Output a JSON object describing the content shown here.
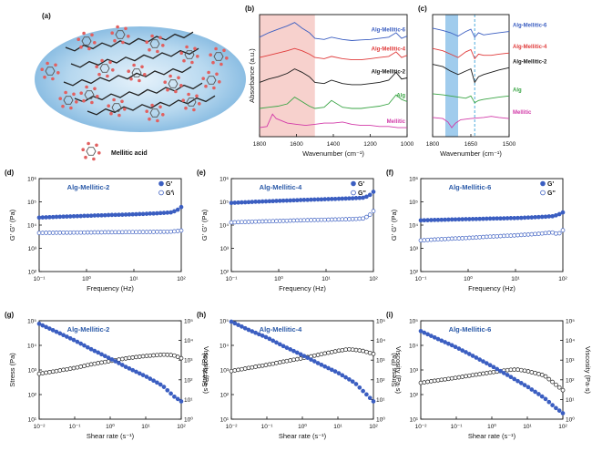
{
  "colors": {
    "blue": "#3b5ec1",
    "black": "#1a1a1a",
    "red": "#e03b3b",
    "green": "#3aa545",
    "magenta": "#d23aa8",
    "title": "#2b5aa8",
    "pink": "#f6c9c4",
    "lightblue": "#8fc3ea"
  },
  "panel_a": {
    "label": "(a)",
    "legend": "Mellitic acid"
  },
  "chart_data": [
    {
      "id": "b",
      "type": "line",
      "label": "(b)",
      "xlabel": "Wavenumber (cm⁻¹)",
      "ylabel": "Absorbance (a.u.)",
      "xlim": [
        1800,
        1000
      ],
      "xticks": [
        "1800",
        "1600",
        "1400",
        "1200",
        "1000"
      ],
      "xtick_values": [
        1800,
        1600,
        1400,
        1200,
        1000
      ],
      "highlight_range": [
        1800,
        1500
      ],
      "series": [
        {
          "name": "Alg-Mellitic-6",
          "color": "#3b5ec1",
          "x": [
            1800,
            1750,
            1700,
            1650,
            1610,
            1570,
            1530,
            1500,
            1450,
            1410,
            1350,
            1300,
            1250,
            1200,
            1150,
            1100,
            1060,
            1030,
            1000
          ],
          "y": [
            4.1,
            4.3,
            4.45,
            4.6,
            4.75,
            4.5,
            4.3,
            4.05,
            4.0,
            4.1,
            4.0,
            3.95,
            3.98,
            4.0,
            4.05,
            4.1,
            4.3,
            4.05,
            4.15
          ]
        },
        {
          "name": "Alg-Mellitic-4",
          "color": "#e03b3b",
          "x": [
            1800,
            1750,
            1700,
            1650,
            1610,
            1570,
            1530,
            1500,
            1450,
            1410,
            1350,
            1300,
            1250,
            1200,
            1150,
            1100,
            1060,
            1030,
            1000
          ],
          "y": [
            3.2,
            3.3,
            3.4,
            3.5,
            3.6,
            3.5,
            3.35,
            3.2,
            3.15,
            3.25,
            3.15,
            3.1,
            3.1,
            3.15,
            3.2,
            3.25,
            3.45,
            3.2,
            3.3
          ]
        },
        {
          "name": "Alg-Mellitic-2",
          "color": "#1a1a1a",
          "x": [
            1800,
            1750,
            1700,
            1650,
            1610,
            1570,
            1530,
            1500,
            1450,
            1410,
            1350,
            1300,
            1250,
            1200,
            1150,
            1100,
            1060,
            1030,
            1000
          ],
          "y": [
            2.1,
            2.25,
            2.35,
            2.5,
            2.7,
            2.55,
            2.35,
            2.1,
            2.05,
            2.2,
            2.05,
            2.0,
            2.0,
            2.05,
            2.1,
            2.2,
            2.55,
            2.25,
            2.3
          ]
        },
        {
          "name": "Alg",
          "color": "#3aa545",
          "x": [
            1800,
            1750,
            1700,
            1650,
            1610,
            1570,
            1530,
            1500,
            1450,
            1410,
            1350,
            1300,
            1250,
            1200,
            1150,
            1100,
            1060,
            1030,
            1000
          ],
          "y": [
            0.95,
            1.0,
            1.05,
            1.15,
            1.45,
            1.25,
            1.05,
            0.95,
            1.0,
            1.3,
            1.0,
            0.95,
            0.95,
            1.0,
            1.05,
            1.15,
            1.55,
            1.35,
            1.25
          ]
        },
        {
          "name": "Mellitic",
          "color": "#d23aa8",
          "x": [
            1800,
            1760,
            1730,
            1710,
            1680,
            1650,
            1600,
            1550,
            1500,
            1450,
            1400,
            1350,
            1300,
            1250,
            1200,
            1150,
            1100,
            1050,
            1000
          ],
          "y": [
            0.1,
            0.15,
            0.7,
            0.5,
            0.4,
            0.3,
            0.25,
            0.2,
            0.25,
            0.3,
            0.3,
            0.35,
            0.25,
            0.2,
            0.2,
            0.15,
            0.15,
            0.1,
            0.1
          ]
        }
      ]
    },
    {
      "id": "c",
      "type": "line",
      "label": "(c)",
      "xlabel": "Wavenumber (cm⁻¹)",
      "xlim": [
        1800,
        1500
      ],
      "xticks": [
        "1800",
        "1650",
        "1500"
      ],
      "xtick_values": [
        1800,
        1650,
        1500
      ],
      "highlight_range": [
        1750,
        1700
      ],
      "dashed_x": 1635,
      "series": [
        {
          "name": "Alg-Mellitic-6",
          "color": "#3b5ec1",
          "x": [
            1800,
            1760,
            1730,
            1700,
            1670,
            1650,
            1635,
            1620,
            1600,
            1570,
            1540,
            1500
          ],
          "y": [
            4.5,
            4.4,
            4.3,
            4.15,
            4.35,
            4.45,
            4.1,
            4.3,
            4.2,
            4.25,
            4.3,
            4.35
          ]
        },
        {
          "name": "Alg-Mellitic-4",
          "color": "#e03b3b",
          "x": [
            1800,
            1760,
            1730,
            1700,
            1670,
            1650,
            1635,
            1620,
            1600,
            1570,
            1540,
            1500
          ],
          "y": [
            3.6,
            3.5,
            3.35,
            3.2,
            3.45,
            3.55,
            3.15,
            3.35,
            3.3,
            3.3,
            3.35,
            3.4
          ]
        },
        {
          "name": "Alg-Mellitic-2",
          "color": "#1a1a1a",
          "x": [
            1800,
            1760,
            1730,
            1700,
            1670,
            1650,
            1635,
            1620,
            1600,
            1570,
            1540,
            1500
          ],
          "y": [
            2.9,
            2.8,
            2.6,
            2.45,
            2.6,
            2.7,
            2.1,
            2.35,
            2.45,
            2.55,
            2.65,
            2.75
          ]
        },
        {
          "name": "Alg",
          "color": "#3aa545",
          "x": [
            1800,
            1760,
            1730,
            1700,
            1670,
            1650,
            1635,
            1620,
            1600,
            1570,
            1540,
            1500
          ],
          "y": [
            1.6,
            1.55,
            1.5,
            1.45,
            1.4,
            1.5,
            1.2,
            1.3,
            1.35,
            1.4,
            1.45,
            1.5
          ]
        },
        {
          "name": "Mellitic",
          "color": "#d23aa8",
          "x": [
            1800,
            1760,
            1740,
            1725,
            1710,
            1690,
            1650,
            1600,
            1570,
            1540,
            1500
          ],
          "y": [
            0.55,
            0.5,
            0.35,
            0.1,
            0.3,
            0.45,
            0.5,
            0.55,
            0.6,
            0.55,
            0.5
          ]
        }
      ]
    },
    {
      "id": "d",
      "type": "scatter",
      "label": "(d)",
      "title": "Alg-Mellitic-2",
      "xlabel": "Frequency (Hz)",
      "ylabel": "G' G'' (Pa)",
      "xscale": "log",
      "yscale": "log",
      "xlim": [
        0.1,
        100
      ],
      "ylim": [
        100,
        1000000
      ],
      "xticks": [
        "10⁻¹",
        "10⁰",
        "10¹",
        "10²"
      ],
      "xtick_values": [
        0.1,
        1,
        10,
        100
      ],
      "yticks": [
        "10²",
        "10³",
        "10⁴",
        "10⁵",
        "10⁶"
      ],
      "ytick_values": [
        100,
        1000,
        10000,
        100000,
        1000000
      ],
      "series": [
        {
          "name": "G'",
          "style": "filled",
          "x": [
            0.1,
            0.3,
            1,
            3,
            10,
            30,
            60,
            80,
            100
          ],
          "y": [
            21000,
            23000,
            25000,
            27000,
            29000,
            32000,
            35000,
            42000,
            60000
          ]
        },
        {
          "name": "G'\\",
          "style": "open",
          "x": [
            0.1,
            0.3,
            1,
            3,
            10,
            30,
            60,
            80,
            100
          ],
          "y": [
            4600,
            4700,
            4800,
            4900,
            5000,
            5100,
            5200,
            5500,
            5800
          ]
        }
      ]
    },
    {
      "id": "e",
      "type": "scatter",
      "label": "(e)",
      "title": "Alg-Mellitic-4",
      "xlabel": "Frequency (Hz)",
      "ylabel": "G' G'' (Pa)",
      "xscale": "log",
      "yscale": "log",
      "xlim": [
        0.1,
        100
      ],
      "ylim": [
        100,
        1000000
      ],
      "xticks": [
        "10⁻¹",
        "10⁰",
        "10¹",
        "10²"
      ],
      "xtick_values": [
        0.1,
        1,
        10,
        100
      ],
      "yticks": [
        "10²",
        "10³",
        "10⁴",
        "10⁵",
        "10⁶"
      ],
      "ytick_values": [
        100,
        1000,
        10000,
        100000,
        1000000
      ],
      "series": [
        {
          "name": "G'",
          "style": "filled",
          "x": [
            0.1,
            0.3,
            1,
            3,
            10,
            30,
            60,
            80,
            100
          ],
          "y": [
            90000,
            100000,
            110000,
            120000,
            130000,
            140000,
            150000,
            180000,
            270000
          ]
        },
        {
          "name": "G''",
          "style": "open",
          "x": [
            0.1,
            0.3,
            1,
            3,
            10,
            30,
            60,
            80,
            100
          ],
          "y": [
            13000,
            14000,
            15000,
            16000,
            17000,
            18000,
            19000,
            25000,
            40000
          ]
        }
      ]
    },
    {
      "id": "f",
      "type": "scatter",
      "label": "(f)",
      "title": "Alg-Mellitic-6",
      "xlabel": "Frequency (Hz)",
      "ylabel": "G' G'' (Pa)",
      "xscale": "log",
      "yscale": "log",
      "xlim": [
        0.1,
        100
      ],
      "ylim": [
        100,
        1000000
      ],
      "xticks": [
        "10⁻¹",
        "10⁰",
        "10¹",
        "10²"
      ],
      "xtick_values": [
        0.1,
        1,
        10,
        100
      ],
      "yticks": [
        "10²",
        "10³",
        "10⁴",
        "10⁵",
        "10⁶"
      ],
      "ytick_values": [
        100,
        1000,
        10000,
        100000,
        1000000
      ],
      "series": [
        {
          "name": "G'",
          "style": "filled",
          "x": [
            0.1,
            0.3,
            1,
            3,
            10,
            30,
            60,
            80,
            100
          ],
          "y": [
            16000,
            17000,
            18000,
            19000,
            20000,
            22000,
            24000,
            28000,
            35000
          ]
        },
        {
          "name": "G''",
          "style": "open",
          "x": [
            0.1,
            0.3,
            1,
            3,
            10,
            30,
            60,
            80,
            100
          ],
          "y": [
            2200,
            2500,
            2800,
            3200,
            3600,
            4200,
            4800,
            4000,
            6000
          ]
        }
      ]
    },
    {
      "id": "g",
      "type": "scatter",
      "label": "(g)",
      "title": "Alg-Mellitic-2",
      "xlabel": "Shear rate (s⁻¹)",
      "ylabel": "Stress (Pa)",
      "y2label": "Viscosity (Pa·s)",
      "xscale": "log",
      "yscale": "log",
      "xlim": [
        0.01,
        100
      ],
      "ylim": [
        10,
        100000
      ],
      "y2lim": [
        1,
        100000
      ],
      "xticks": [
        "10⁻²",
        "10⁻¹",
        "10⁰",
        "10¹",
        "10²"
      ],
      "xtick_values": [
        0.01,
        0.1,
        1,
        10,
        100
      ],
      "yticks": [
        "10¹",
        "10²",
        "10³",
        "10⁴",
        "10⁵"
      ],
      "ytick_values": [
        10,
        100,
        1000,
        10000,
        100000
      ],
      "y2ticks": [
        "10⁰",
        "10¹",
        "10²",
        "10³",
        "10⁴",
        "10⁵"
      ],
      "y2tick_values": [
        1,
        10,
        100,
        1000,
        10000,
        100000
      ],
      "series": [
        {
          "name": "Stress",
          "axis": "left",
          "color": "#1a1a1a",
          "style": "open",
          "x": [
            0.01,
            0.03,
            0.1,
            0.3,
            1,
            3,
            10,
            30,
            60,
            100
          ],
          "y": [
            700,
            900,
            1200,
            1700,
            2300,
            3000,
            3700,
            4200,
            4000,
            3000
          ]
        },
        {
          "name": "Viscosity",
          "axis": "right",
          "color": "#3b5ec1",
          "style": "filled",
          "x": [
            0.01,
            0.03,
            0.1,
            0.3,
            1,
            3,
            10,
            30,
            60,
            100
          ],
          "y": [
            70000,
            28000,
            10000,
            3500,
            1200,
            420,
            150,
            50,
            15,
            8
          ]
        }
      ]
    },
    {
      "id": "h",
      "type": "scatter",
      "label": "(h)",
      "title": "Alg-Mellitic-4",
      "xlabel": "Shear rate (s⁻¹)",
      "ylabel": "Stress (Pa)",
      "y2label": "Viscosity (Pa·s)",
      "xscale": "log",
      "yscale": "log",
      "xlim": [
        0.01,
        100
      ],
      "ylim": [
        10,
        100000
      ],
      "y2lim": [
        1,
        100000
      ],
      "xticks": [
        "10⁻²",
        "10⁻¹",
        "10⁰",
        "10¹",
        "10²"
      ],
      "xtick_values": [
        0.01,
        0.1,
        1,
        10,
        100
      ],
      "yticks": [
        "10¹",
        "10²",
        "10³",
        "10⁴",
        "10⁵"
      ],
      "ytick_values": [
        10,
        100,
        1000,
        10000,
        100000
      ],
      "y2ticks": [
        "10⁰",
        "10¹",
        "10²",
        "10³",
        "10⁴",
        "10⁵"
      ],
      "y2tick_values": [
        1,
        10,
        100,
        1000,
        10000,
        100000
      ],
      "series": [
        {
          "name": "Stress",
          "axis": "left",
          "color": "#1a1a1a",
          "style": "open",
          "x": [
            0.01,
            0.03,
            0.1,
            0.3,
            1,
            3,
            10,
            20,
            50,
            100
          ],
          "y": [
            900,
            1200,
            1600,
            2200,
            3000,
            4200,
            6000,
            7000,
            6000,
            4500
          ]
        },
        {
          "name": "Viscosity",
          "axis": "right",
          "color": "#3b5ec1",
          "style": "filled",
          "x": [
            0.01,
            0.03,
            0.1,
            0.3,
            1,
            3,
            10,
            30,
            60,
            100
          ],
          "y": [
            90000,
            35000,
            14000,
            5000,
            1800,
            650,
            230,
            70,
            20,
            8
          ]
        }
      ]
    },
    {
      "id": "i",
      "type": "scatter",
      "label": "(i)",
      "title": "Alg-Mellitic-6",
      "xlabel": "Shear rate (s⁻¹)",
      "ylabel": "Stress (Pa)",
      "y2label": "Viscosity (Pa·s)",
      "xscale": "log",
      "yscale": "log",
      "xlim": [
        0.01,
        100
      ],
      "ylim": [
        10,
        100000
      ],
      "y2lim": [
        1,
        100000
      ],
      "xticks": [
        "10⁻²",
        "10⁻¹",
        "10⁰",
        "10¹",
        "10²"
      ],
      "xtick_values": [
        0.01,
        0.1,
        1,
        10,
        100
      ],
      "yticks": [
        "10¹",
        "10²",
        "10³",
        "10⁴",
        "10⁵"
      ],
      "ytick_values": [
        10,
        100,
        1000,
        10000,
        100000
      ],
      "y2ticks": [
        "10⁰",
        "10¹",
        "10²",
        "10³",
        "10⁴",
        "10⁵"
      ],
      "y2tick_values": [
        1,
        10,
        100,
        1000,
        10000,
        100000
      ],
      "series": [
        {
          "name": "Stress",
          "axis": "left",
          "color": "#1a1a1a",
          "style": "open",
          "x": [
            0.01,
            0.03,
            0.1,
            0.3,
            1,
            3,
            5,
            10,
            30,
            100
          ],
          "y": [
            300,
            380,
            480,
            620,
            800,
            1000,
            1050,
            900,
            600,
            150
          ]
        },
        {
          "name": "Viscosity",
          "axis": "right",
          "color": "#3b5ec1",
          "style": "filled",
          "x": [
            0.01,
            0.03,
            0.1,
            0.3,
            1,
            3,
            10,
            30,
            60,
            100
          ],
          "y": [
            30000,
            12000,
            4500,
            1600,
            500,
            160,
            45,
            12,
            4,
            2
          ]
        }
      ]
    }
  ]
}
